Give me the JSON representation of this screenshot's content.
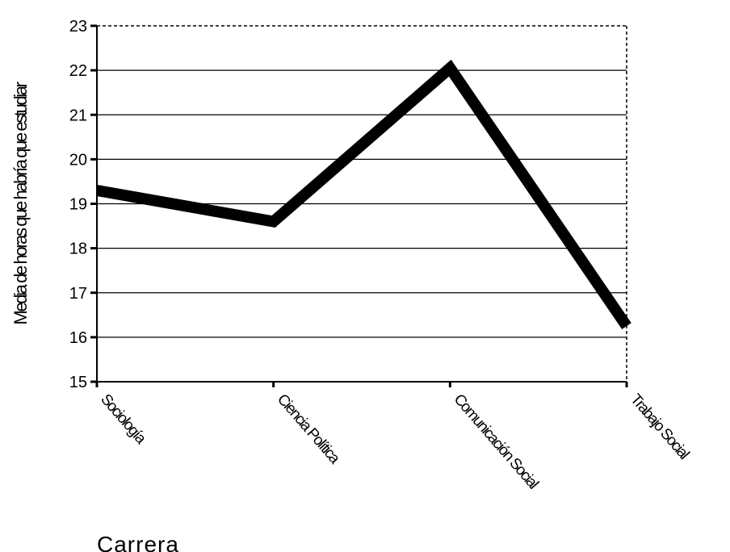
{
  "chart_data": {
    "type": "line",
    "categories": [
      "Sociología",
      "Ciencia Política",
      "Comunicación Social",
      "Trabajo Social"
    ],
    "series": [
      {
        "values": [
          19.3,
          18.6,
          22.05,
          16.25
        ]
      }
    ],
    "xlabel": "Carrera",
    "ylabel": "Media de horas que habría que estudiar",
    "ylim": [
      15,
      23
    ],
    "yticks": [
      15,
      16,
      17,
      18,
      19,
      20,
      21,
      22,
      23
    ],
    "grid": true,
    "legend": "none",
    "line_color": "#000000"
  }
}
